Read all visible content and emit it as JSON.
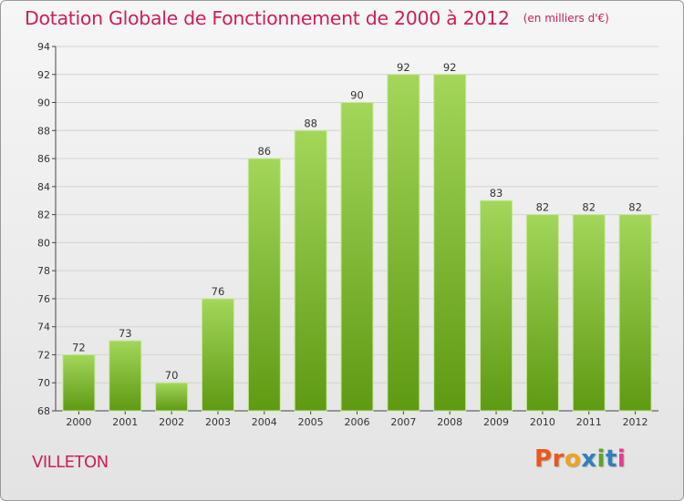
{
  "title": "Dotation Globale de Fonctionnement de 2000 à 2012",
  "unit": "(en milliers d'€)",
  "place": "VILLETON",
  "logo": {
    "text": "Proxiti",
    "colors": [
      "#e8591a",
      "#e8591a",
      "#f0a319",
      "#2f7fc1",
      "#5aa52c",
      "#2f7fc1",
      "#e33c8c"
    ]
  },
  "colors": {
    "title": "#cc1f5a",
    "bar_light": "#a3d65a",
    "bar_dark": "#5f9a13",
    "grid": "#d2d2d2"
  },
  "chart_data": {
    "type": "bar",
    "title": "Dotation Globale de Fonctionnement de 2000 à 2012",
    "xlabel": "",
    "ylabel": "",
    "categories": [
      "2000",
      "2001",
      "2002",
      "2003",
      "2004",
      "2005",
      "2006",
      "2007",
      "2008",
      "2009",
      "2010",
      "2011",
      "2012"
    ],
    "values": [
      72,
      73,
      70,
      76,
      86,
      88,
      90,
      92,
      92,
      83,
      82,
      82,
      82
    ],
    "ylim": [
      68,
      94
    ],
    "yticks": [
      68,
      70,
      72,
      74,
      76,
      78,
      80,
      82,
      84,
      86,
      88,
      90,
      92,
      94
    ],
    "grid": true,
    "legend": "none"
  }
}
